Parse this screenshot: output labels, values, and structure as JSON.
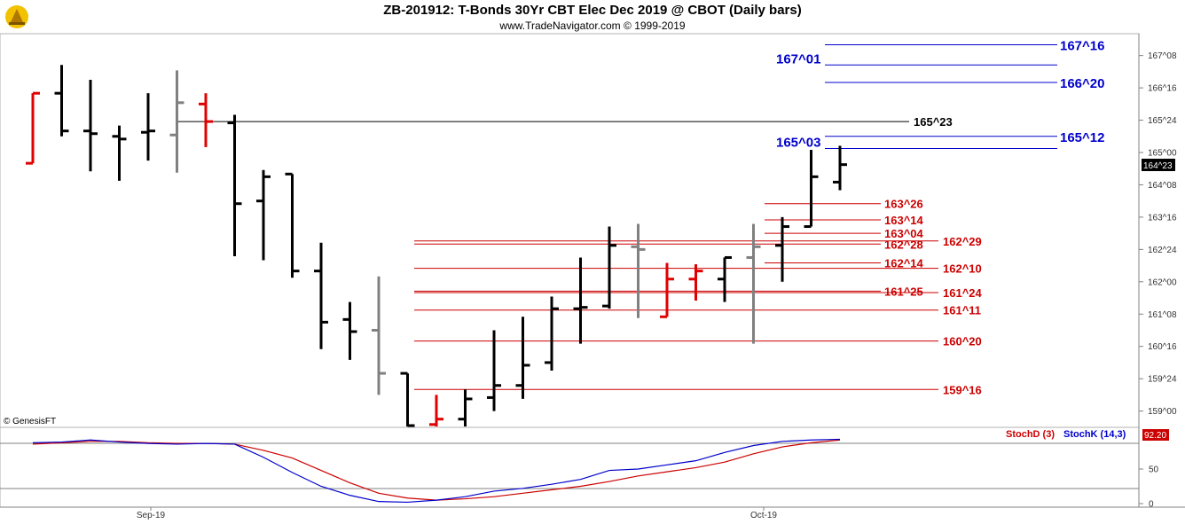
{
  "header": {
    "title": "ZB-201912:  T-Bonds 30Yr CBT Elec Dec 2019 @ CBOT  (Daily bars)",
    "subtitle": "www.TradeNavigator.com © 1999-2019"
  },
  "watermark": "© GenesisFT",
  "current_price_badge": "164^23",
  "colors": {
    "up_bar": "#000000",
    "neutral_bar": "#808080",
    "reversal_bar": "#e00000",
    "resistance_line": "#0000cc",
    "support_line": "#cc0000",
    "pivot_line": "#000000",
    "stoch_d": "#cc0000",
    "stoch_k": "#0000cc",
    "badge_bg": "#000000",
    "stoch_badge_bg": "#cc0000"
  },
  "chart_data": [
    {
      "type": "ohlc",
      "price_units": "32nds",
      "x_labels": [
        "Sep-19",
        "Oct-19"
      ],
      "y_ticks": [
        "167^08",
        "166^16",
        "165^24",
        "165^00",
        "164^08",
        "163^16",
        "162^24",
        "162^00",
        "161^08",
        "160^16",
        "159^24",
        "159^00"
      ],
      "bars": [
        {
          "open": "164^24",
          "high": "166^12",
          "low": "164^24",
          "close": "166^12",
          "color": "red"
        },
        {
          "open": "166^12",
          "high": "167^01",
          "low": "165^12",
          "close": "165^16",
          "color": "black"
        },
        {
          "open": "165^16",
          "high": "166^22",
          "low": "164^18",
          "close": "165^14",
          "color": "black"
        },
        {
          "open": "165^12",
          "high": "165^20",
          "low": "164^11",
          "close": "165^10",
          "color": "black"
        },
        {
          "open": "165^15",
          "high": "166^12",
          "low": "164^26",
          "close": "165^16",
          "color": "black"
        },
        {
          "open": "165^13",
          "high": "166^29",
          "low": "164^17",
          "close": "166^05",
          "color": "gray"
        },
        {
          "open": "166^04",
          "high": "166^12",
          "low": "165^04",
          "close": "165^23",
          "color": "red"
        },
        {
          "open": "165^22",
          "high": "165^28",
          "low": "162^19",
          "close": "163^26",
          "color": "black"
        },
        {
          "open": "163^28",
          "high": "164^19",
          "low": "162^16",
          "close": "164^14",
          "color": "black"
        },
        {
          "open": "164^16",
          "high": "164^16",
          "low": "162^03",
          "close": "162^08",
          "color": "black"
        },
        {
          "open": "162^08",
          "high": "162^29",
          "low": "160^14",
          "close": "161^02",
          "color": "black"
        },
        {
          "open": "161^04",
          "high": "161^17",
          "low": "160^06",
          "close": "160^27",
          "color": "black"
        },
        {
          "open": "160^28",
          "high": "162^04",
          "low": "159^12",
          "close": "159^28",
          "color": "gray"
        },
        {
          "open": "159^28",
          "high": "159^28",
          "low": "158^15",
          "close": "158^15",
          "color": "black"
        },
        {
          "open": "158^22",
          "high": "159^12",
          "low": "158^05",
          "close": "158^26",
          "color": "red"
        },
        {
          "open": "158^26",
          "high": "159^16",
          "low": "158^20",
          "close": "159^09",
          "color": "black"
        },
        {
          "open": "159^10",
          "high": "160^28",
          "low": "159^00",
          "close": "159^19",
          "color": "black"
        },
        {
          "open": "159^19",
          "high": "161^06",
          "low": "159^09",
          "close": "160^02",
          "color": "black"
        },
        {
          "open": "160^04",
          "high": "161^21",
          "low": "159^30",
          "close": "161^12",
          "color": "black"
        },
        {
          "open": "161^12",
          "high": "162^18",
          "low": "160^18",
          "close": "161^13",
          "color": "black"
        },
        {
          "open": "161^14",
          "high": "163^09",
          "low": "161^12",
          "close": "162^27",
          "color": "black"
        },
        {
          "open": "162^26",
          "high": "163^11",
          "low": "161^05",
          "close": "162^24",
          "color": "gray"
        },
        {
          "open": "161^06",
          "high": "162^14",
          "low": "161^06",
          "close": "162^02",
          "color": "red"
        },
        {
          "open": "162^02",
          "high": "162^13",
          "low": "161^18",
          "close": "162^08",
          "color": "red"
        },
        {
          "open": "162^02",
          "high": "162^18",
          "low": "161^17",
          "close": "162^18",
          "color": "black"
        },
        {
          "open": "162^18",
          "high": "163^11",
          "low": "160^18",
          "close": "162^26",
          "color": "gray"
        },
        {
          "open": "162^27",
          "high": "163^16",
          "low": "162^00",
          "close": "163^09",
          "color": "black"
        },
        {
          "open": "163^09",
          "high": "165^02",
          "low": "163^09",
          "close": "164^14",
          "color": "black"
        },
        {
          "open": "164^10",
          "high": "165^05",
          "low": "164^04",
          "close": "164^23",
          "color": "black"
        }
      ],
      "levels": [
        {
          "label": "167^16",
          "value": "167^16",
          "color": "blue"
        },
        {
          "label": "167^01",
          "value": "167^01",
          "color": "blue"
        },
        {
          "label": "166^20",
          "value": "166^20",
          "color": "blue"
        },
        {
          "label": "165^23",
          "value": "165^23",
          "color": "black"
        },
        {
          "label": "165^12",
          "value": "165^12",
          "color": "blue"
        },
        {
          "label": "165^03",
          "value": "165^03",
          "color": "blue"
        },
        {
          "label": "163^26",
          "value": "163^26",
          "color": "red"
        },
        {
          "label": "163^14",
          "value": "163^14",
          "color": "red"
        },
        {
          "label": "163^04",
          "value": "163^04",
          "color": "red"
        },
        {
          "label": "162^28",
          "value": "162^28",
          "color": "red"
        },
        {
          "label": "162^29",
          "value": "162^29",
          "color": "red"
        },
        {
          "label": "162^14",
          "value": "162^14",
          "color": "red"
        },
        {
          "label": "162^10",
          "value": "162^10",
          "color": "red"
        },
        {
          "label": "161^25",
          "value": "161^25",
          "color": "red"
        },
        {
          "label": "161^24",
          "value": "161^24",
          "color": "red"
        },
        {
          "label": "161^11",
          "value": "161^11",
          "color": "red"
        },
        {
          "label": "160^20",
          "value": "160^20",
          "color": "red"
        },
        {
          "label": "159^16",
          "value": "159^16",
          "color": "red"
        }
      ]
    },
    {
      "type": "line",
      "y_ticks": [
        "92.20",
        "50",
        "0"
      ],
      "ylim": [
        0,
        100
      ],
      "series": [
        {
          "name": "StochD (3)",
          "color": "red",
          "values": [
            86,
            88,
            90,
            90,
            88,
            87,
            87,
            86,
            77,
            66,
            48,
            30,
            15,
            8,
            5,
            7,
            10,
            15,
            20,
            25,
            32,
            40,
            46,
            52,
            60,
            72,
            82,
            88,
            92
          ]
        },
        {
          "name": "StochK (14,3)",
          "color": "blue",
          "values": [
            88,
            89,
            92,
            89,
            87,
            86,
            87,
            86,
            67,
            45,
            25,
            12,
            3,
            2,
            5,
            10,
            18,
            22,
            28,
            35,
            48,
            50,
            56,
            62,
            74,
            84,
            90,
            92,
            93
          ]
        }
      ]
    }
  ]
}
